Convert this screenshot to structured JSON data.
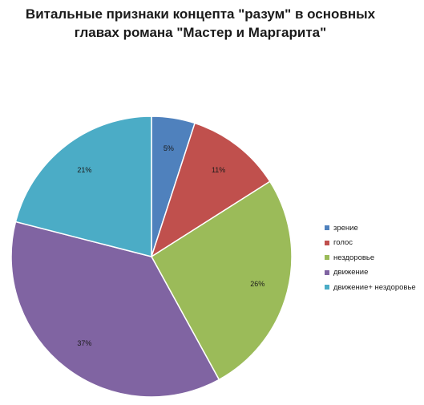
{
  "chart_data": {
    "type": "pie",
    "title_lines": [
      "Витальные признаки концепта \"разум\" в основных",
      "главах романа \"Мастер и Маргарита\""
    ],
    "categories": [
      "зрение",
      "голос",
      "нездоровье",
      "движение",
      "движение+ нездоровье"
    ],
    "values": [
      5,
      11,
      26,
      37,
      21
    ],
    "value_labels": [
      "5%",
      "11%",
      "26%",
      "37%",
      "21%"
    ],
    "colors": [
      "#4f81bd",
      "#c0504d",
      "#9bbb59",
      "#8064a2",
      "#4bacc6"
    ],
    "start_angle_deg": 0,
    "direction": "clockwise",
    "legend_position": "right"
  }
}
